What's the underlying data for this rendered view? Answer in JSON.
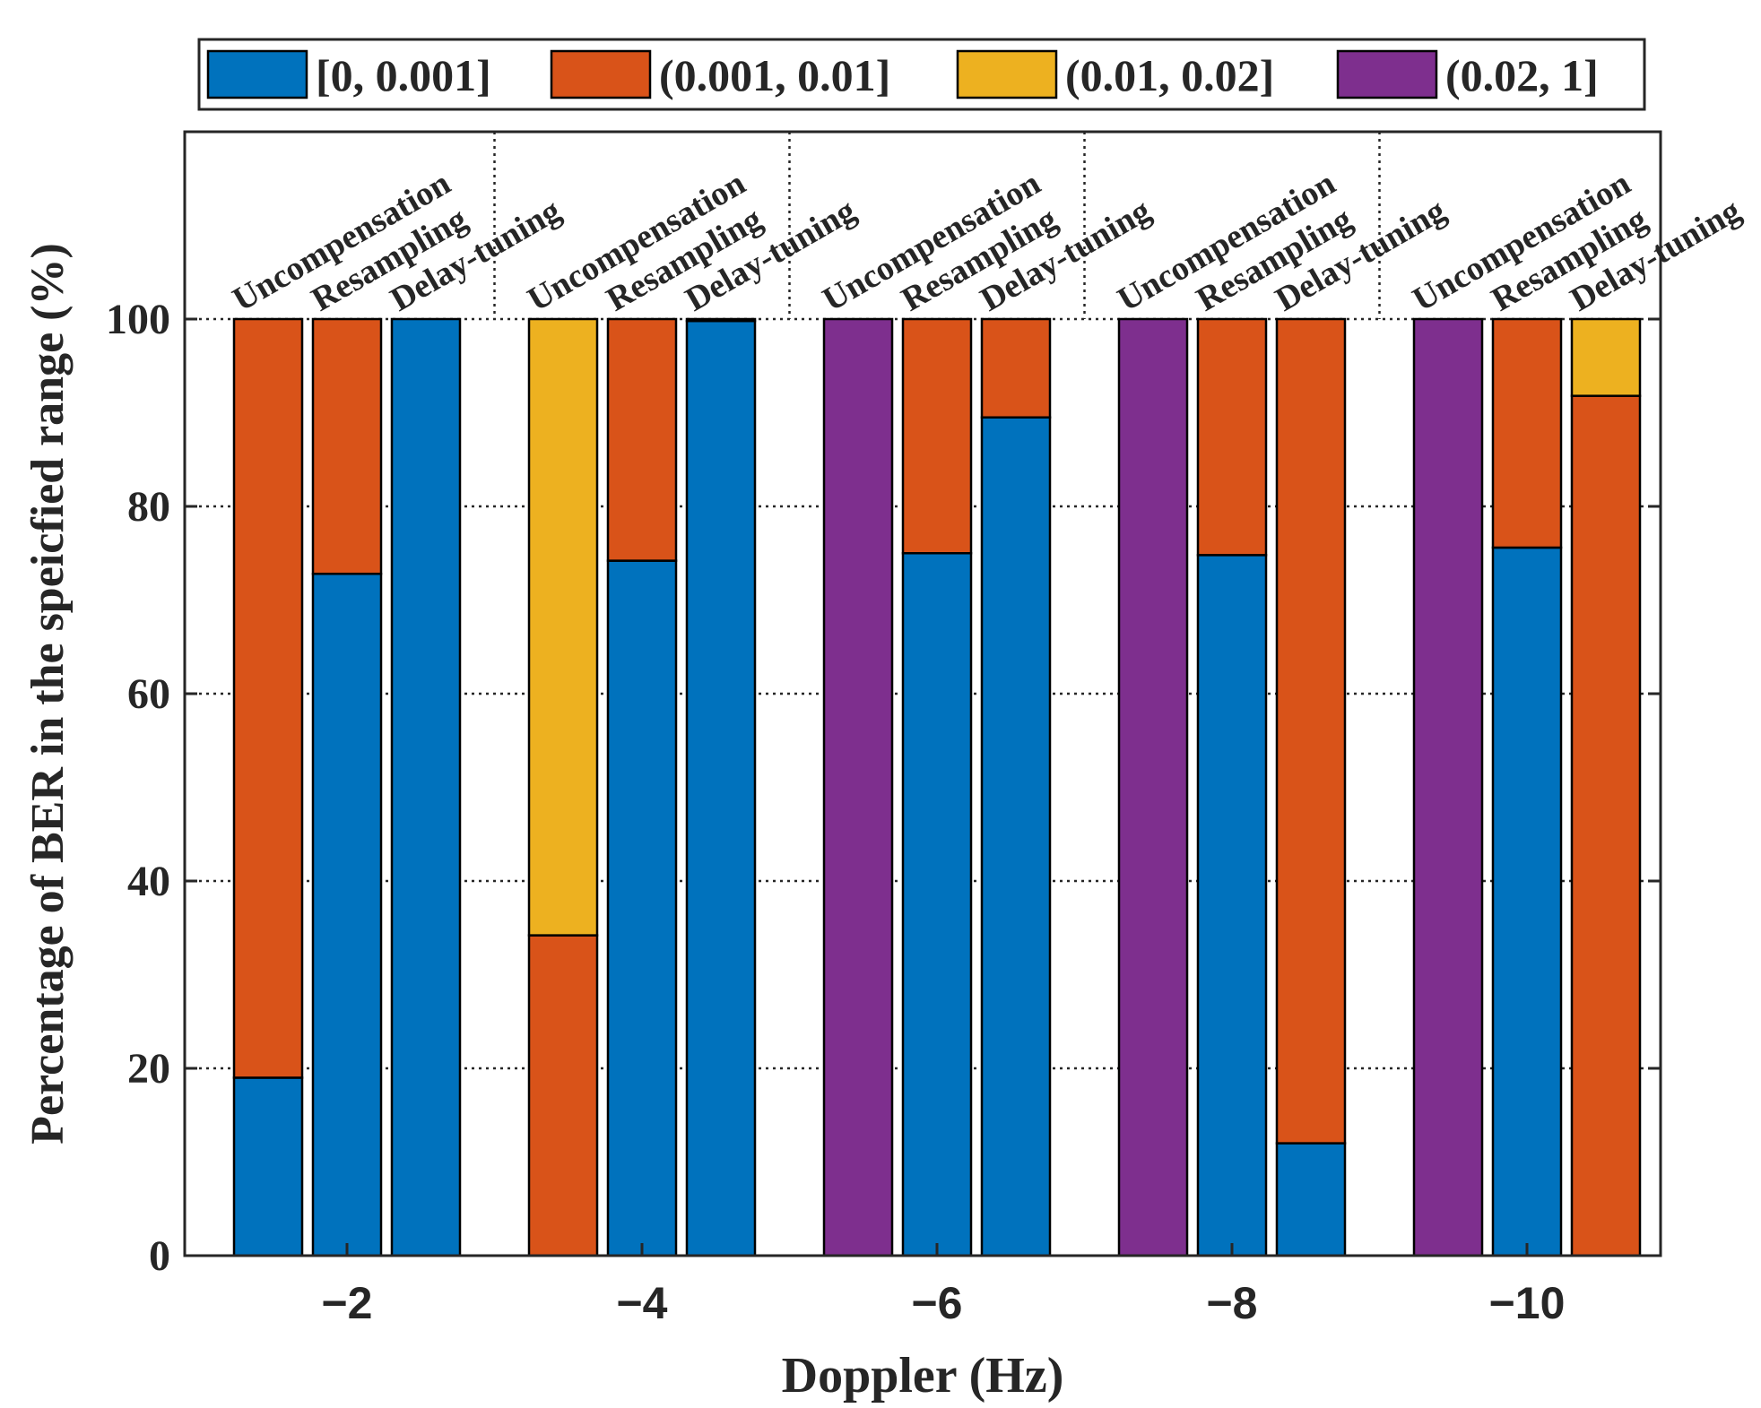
{
  "chart_data": {
    "type": "bar",
    "stacked": true,
    "xlabel": "Doppler (Hz)",
    "ylabel": "Percentage of BER in the speicfied range (%)",
    "ylim": [
      0,
      120
    ],
    "yticks": [
      0,
      20,
      40,
      60,
      80,
      100
    ],
    "grid": true,
    "legend_position": "top",
    "legend_orientation": "horizontal",
    "groups": [
      "−2",
      "−4",
      "−6",
      "−8",
      "−10"
    ],
    "methods": [
      "Uncompensation",
      "Resampling",
      "Delay-tuning"
    ],
    "series": [
      {
        "name": "[0, 0.001]",
        "color": "#0072BD",
        "values": [
          [
            19,
            72.8,
            100
          ],
          [
            0,
            74.2,
            99.8
          ],
          [
            0,
            75,
            89.5
          ],
          [
            0,
            74.8,
            12
          ],
          [
            0,
            75.6,
            0
          ]
        ]
      },
      {
        "name": "(0.001, 0.01]",
        "color": "#D95319",
        "values": [
          [
            81,
            27.2,
            0
          ],
          [
            34.2,
            25.8,
            0.2
          ],
          [
            0,
            25,
            10.5
          ],
          [
            0,
            25.2,
            88
          ],
          [
            0,
            24.4,
            91.8
          ]
        ]
      },
      {
        "name": "(0.01, 0.02]",
        "color": "#EDB120",
        "values": [
          [
            0,
            0,
            0
          ],
          [
            65.8,
            0,
            0
          ],
          [
            0,
            0,
            0
          ],
          [
            0,
            0,
            0
          ],
          [
            0,
            0,
            8.2
          ]
        ]
      },
      {
        "name": "(0.02, 1]",
        "color": "#7E2F8E",
        "values": [
          [
            0,
            0,
            0
          ],
          [
            0,
            0,
            0
          ],
          [
            100,
            0,
            0
          ],
          [
            100,
            0,
            0
          ],
          [
            100,
            0,
            0
          ]
        ]
      }
    ]
  }
}
